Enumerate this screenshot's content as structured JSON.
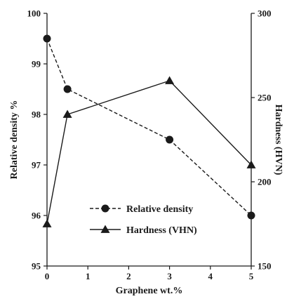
{
  "chart_data": {
    "type": "line",
    "xlabel": "Graphene wt.%",
    "ylabel_left": "Relative density %",
    "ylabel_right": "Hardness (HVN)",
    "xlim": [
      0,
      5
    ],
    "ylim_left": [
      95,
      100
    ],
    "ylim_right": [
      150,
      300
    ],
    "x_ticks": [
      "0",
      "1",
      "2",
      "3",
      "4",
      "5"
    ],
    "y_left_ticks": [
      "95",
      "96",
      "97",
      "98",
      "99",
      "100"
    ],
    "y_right_ticks": [
      "150",
      "200",
      "250",
      "300"
    ],
    "grid": false,
    "legend_position": "bottom-right",
    "series": [
      {
        "name": "Relative density",
        "axis": "left",
        "line_style": "dashed",
        "marker": "circle",
        "color": "#1a1a1a",
        "x": [
          0,
          0.5,
          3,
          5
        ],
        "y": [
          99.5,
          98.5,
          97.5,
          96.0
        ]
      },
      {
        "name": "Hardness (VHN)",
        "axis": "right",
        "line_style": "solid",
        "marker": "triangle",
        "color": "#1a1a1a",
        "x": [
          0,
          0.5,
          3,
          5
        ],
        "y": [
          175,
          240,
          260,
          210
        ]
      }
    ]
  }
}
